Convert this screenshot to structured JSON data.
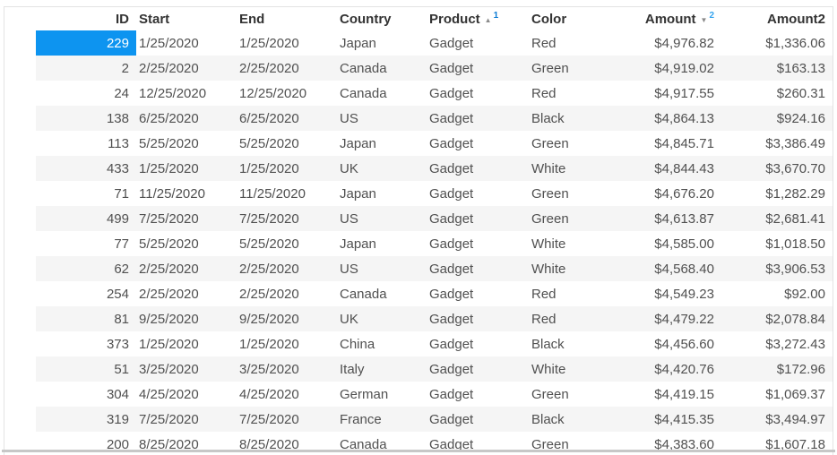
{
  "table": {
    "columns": [
      {
        "label": "ID",
        "align": "right"
      },
      {
        "label": "Start",
        "align": "left"
      },
      {
        "label": "End",
        "align": "left"
      },
      {
        "label": "Country",
        "align": "left"
      },
      {
        "label": "Product",
        "align": "left",
        "sort": {
          "direction": "asc",
          "order": "1"
        }
      },
      {
        "label": "Color",
        "align": "left"
      },
      {
        "label": "Amount",
        "align": "right",
        "sort": {
          "direction": "desc",
          "order": "2"
        }
      },
      {
        "label": "Amount2",
        "align": "right"
      }
    ],
    "rows": [
      [
        "229",
        "1/25/2020",
        "1/25/2020",
        "Japan",
        "Gadget",
        "Red",
        "$4,976.82",
        "$1,336.06"
      ],
      [
        "2",
        "2/25/2020",
        "2/25/2020",
        "Canada",
        "Gadget",
        "Green",
        "$4,919.02",
        "$163.13"
      ],
      [
        "24",
        "12/25/2020",
        "12/25/2020",
        "Canada",
        "Gadget",
        "Red",
        "$4,917.55",
        "$260.31"
      ],
      [
        "138",
        "6/25/2020",
        "6/25/2020",
        "US",
        "Gadget",
        "Black",
        "$4,864.13",
        "$924.16"
      ],
      [
        "113",
        "5/25/2020",
        "5/25/2020",
        "Japan",
        "Gadget",
        "Green",
        "$4,845.71",
        "$3,386.49"
      ],
      [
        "433",
        "1/25/2020",
        "1/25/2020",
        "UK",
        "Gadget",
        "White",
        "$4,844.43",
        "$3,670.70"
      ],
      [
        "71",
        "11/25/2020",
        "11/25/2020",
        "Japan",
        "Gadget",
        "Green",
        "$4,676.20",
        "$1,282.29"
      ],
      [
        "499",
        "7/25/2020",
        "7/25/2020",
        "US",
        "Gadget",
        "Green",
        "$4,613.87",
        "$2,681.41"
      ],
      [
        "77",
        "5/25/2020",
        "5/25/2020",
        "Japan",
        "Gadget",
        "White",
        "$4,585.00",
        "$1,018.50"
      ],
      [
        "62",
        "2/25/2020",
        "2/25/2020",
        "US",
        "Gadget",
        "White",
        "$4,568.40",
        "$3,906.53"
      ],
      [
        "254",
        "2/25/2020",
        "2/25/2020",
        "Canada",
        "Gadget",
        "Red",
        "$4,549.23",
        "$92.00"
      ],
      [
        "81",
        "9/25/2020",
        "9/25/2020",
        "UK",
        "Gadget",
        "Red",
        "$4,479.22",
        "$2,078.84"
      ],
      [
        "373",
        "1/25/2020",
        "1/25/2020",
        "China",
        "Gadget",
        "Black",
        "$4,456.60",
        "$3,272.43"
      ],
      [
        "51",
        "3/25/2020",
        "3/25/2020",
        "Italy",
        "Gadget",
        "White",
        "$4,420.76",
        "$172.96"
      ],
      [
        "304",
        "4/25/2020",
        "4/25/2020",
        "German",
        "Gadget",
        "Green",
        "$4,419.15",
        "$1,069.37"
      ],
      [
        "319",
        "7/25/2020",
        "7/25/2020",
        "France",
        "Gadget",
        "Black",
        "$4,415.35",
        "$3,494.97"
      ],
      [
        "200",
        "8/25/2020",
        "8/25/2020",
        "Canada",
        "Gadget",
        "Green",
        "$4,383.60",
        "$1,607.18"
      ]
    ],
    "selected_cell": {
      "row": 0,
      "col": 0
    }
  },
  "colors": {
    "selected_cell_bg": "#0d94f0",
    "stripe": "#f5f5f5",
    "border": "#e3e3e3",
    "header_text": "#333333",
    "body_text": "#505050",
    "sort_icon": "#8a8a8a",
    "sort_order_1": "#0b7bd4",
    "sort_order_2": "#34a4ee",
    "scrollbar": "#c7c7c7"
  },
  "glyphs": {
    "sort_asc": "▲",
    "sort_desc": "▼"
  }
}
